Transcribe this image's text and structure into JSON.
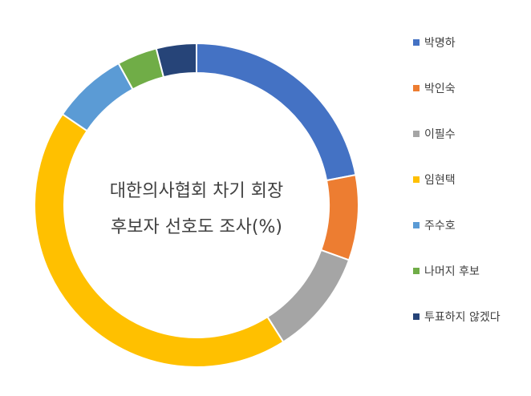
{
  "chart_data": {
    "type": "pie",
    "subtype": "doughnut",
    "title_lines": [
      "대한의사협회 차기 회장",
      "후보자 선호도 조사(%)"
    ],
    "unit": "%",
    "categories": [
      "박명하",
      "박인숙",
      "이필수",
      "임현택",
      "주수호",
      "나머지 후보",
      "투표하지 않겠다"
    ],
    "values": [
      22.0,
      8.5,
      10.5,
      43.5,
      7.5,
      4.0,
      4.0
    ],
    "colors": [
      "#4472C4",
      "#ED7D31",
      "#A5A5A5",
      "#FFC000",
      "#5B9BD5",
      "#70AD47",
      "#264478"
    ],
    "legend_position": "right"
  }
}
